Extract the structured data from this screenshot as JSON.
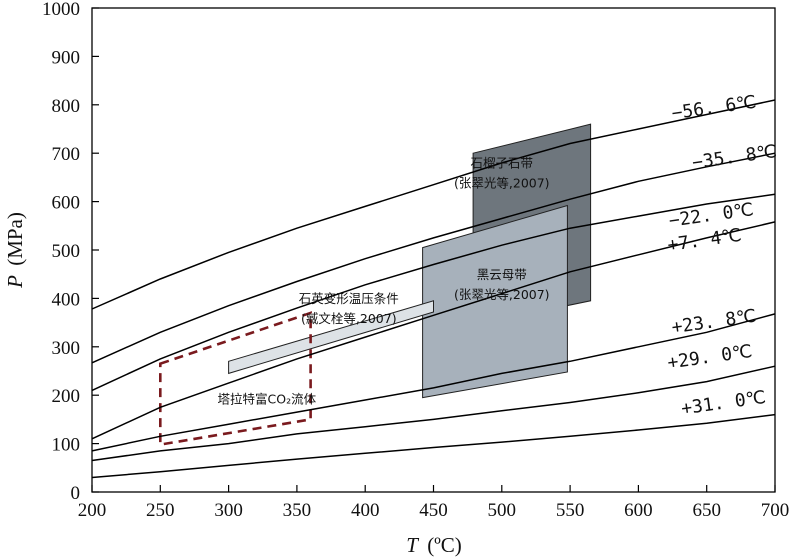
{
  "chart_data": {
    "type": "line",
    "xlabel": {
      "var": "T",
      "unit": "(ºC)"
    },
    "ylabel": {
      "var": "P",
      "unit": "(MPa)"
    },
    "xlim": [
      200,
      700
    ],
    "ylim": [
      0,
      1000
    ],
    "xticks": [
      200,
      250,
      300,
      350,
      400,
      450,
      500,
      550,
      600,
      650,
      700
    ],
    "yticks": [
      0,
      100,
      200,
      300,
      400,
      500,
      600,
      700,
      800,
      900,
      1000
    ],
    "grid": false,
    "isochores": [
      {
        "label": "−56. 6℃",
        "label_at": [
          625,
          770
        ],
        "points": [
          [
            200,
            378
          ],
          [
            250,
            440
          ],
          [
            300,
            495
          ],
          [
            350,
            545
          ],
          [
            400,
            590
          ],
          [
            450,
            635
          ],
          [
            500,
            680
          ],
          [
            550,
            720
          ],
          [
            600,
            750
          ],
          [
            650,
            780
          ],
          [
            700,
            810
          ]
        ]
      },
      {
        "label": "−35. 8℃",
        "label_at": [
          640,
          668
        ],
        "points": [
          [
            200,
            267
          ],
          [
            250,
            330
          ],
          [
            300,
            385
          ],
          [
            350,
            435
          ],
          [
            400,
            482
          ],
          [
            450,
            525
          ],
          [
            500,
            565
          ],
          [
            550,
            605
          ],
          [
            600,
            642
          ],
          [
            650,
            672
          ],
          [
            700,
            700
          ]
        ]
      },
      {
        "label": "−22. 0℃",
        "label_at": [
          623,
          548
        ],
        "points": [
          [
            200,
            210
          ],
          [
            250,
            275
          ],
          [
            300,
            330
          ],
          [
            350,
            380
          ],
          [
            400,
            428
          ],
          [
            450,
            470
          ],
          [
            500,
            510
          ],
          [
            550,
            545
          ],
          [
            600,
            570
          ],
          [
            650,
            595
          ],
          [
            700,
            615
          ]
        ]
      },
      {
        "label": "+7. 4℃",
        "label_at": [
          622,
          498
        ],
        "points": [
          [
            200,
            110
          ],
          [
            250,
            175
          ],
          [
            300,
            225
          ],
          [
            350,
            275
          ],
          [
            400,
            320
          ],
          [
            450,
            365
          ],
          [
            500,
            410
          ],
          [
            550,
            455
          ],
          [
            600,
            490
          ],
          [
            650,
            525
          ],
          [
            700,
            558
          ]
        ]
      },
      {
        "label": "+23. 8℃",
        "label_at": [
          625,
          328
        ],
        "points": [
          [
            200,
            85
          ],
          [
            250,
            115
          ],
          [
            300,
            140
          ],
          [
            350,
            165
          ],
          [
            400,
            190
          ],
          [
            450,
            215
          ],
          [
            500,
            245
          ],
          [
            550,
            270
          ],
          [
            600,
            300
          ],
          [
            650,
            330
          ],
          [
            700,
            368
          ]
        ]
      },
      {
        "label": "+29. 0℃",
        "label_at": [
          622,
          255
        ],
        "points": [
          [
            200,
            65
          ],
          [
            250,
            85
          ],
          [
            300,
            100
          ],
          [
            350,
            120
          ],
          [
            400,
            135
          ],
          [
            450,
            150
          ],
          [
            500,
            168
          ],
          [
            550,
            185
          ],
          [
            600,
            205
          ],
          [
            650,
            228
          ],
          [
            700,
            260
          ]
        ]
      },
      {
        "label": "+31. 0℃",
        "label_at": [
          632,
          160
        ],
        "points": [
          [
            200,
            30
          ],
          [
            250,
            42
          ],
          [
            300,
            55
          ],
          [
            350,
            68
          ],
          [
            400,
            80
          ],
          [
            450,
            92
          ],
          [
            500,
            103
          ],
          [
            550,
            115
          ],
          [
            600,
            128
          ],
          [
            650,
            142
          ],
          [
            700,
            160
          ]
        ]
      }
    ],
    "regions": [
      {
        "id": "garnet",
        "label_lines": [
          "石榴子石带",
          "(张翠光等,2007)"
        ],
        "label_at": [
          500,
          670
        ],
        "fill": "#6e767d",
        "vertices": [
          [
            479,
            700
          ],
          [
            565,
            760
          ],
          [
            565,
            395
          ],
          [
            479,
            345
          ]
        ]
      },
      {
        "id": "biotite",
        "label_lines": [
          "黑云母带",
          "(张翠光等,2007)"
        ],
        "label_at": [
          500,
          440
        ],
        "fill": "#a7b1bb",
        "vertices": [
          [
            442,
            505
          ],
          [
            548,
            592
          ],
          [
            548,
            248
          ],
          [
            442,
            195
          ]
        ]
      },
      {
        "id": "quartz",
        "label_lines": [
          "石英变形温压条件",
          "(臧文栓等,2007)"
        ],
        "label_at": [
          388,
          390
        ],
        "fill": "#dde2e6",
        "vertices": [
          [
            300,
            270
          ],
          [
            450,
            395
          ],
          [
            450,
            372
          ],
          [
            300,
            245
          ]
        ]
      },
      {
        "id": "co2-fluid",
        "label_lines": [
          "塔拉特富CO₂流体"
        ],
        "label_at": [
          328,
          183
        ],
        "fill": "none",
        "stroke": "#7a1a1e",
        "vertices": [
          [
            250,
            265
          ],
          [
            360,
            370
          ],
          [
            360,
            150
          ],
          [
            250,
            98
          ]
        ]
      }
    ]
  }
}
